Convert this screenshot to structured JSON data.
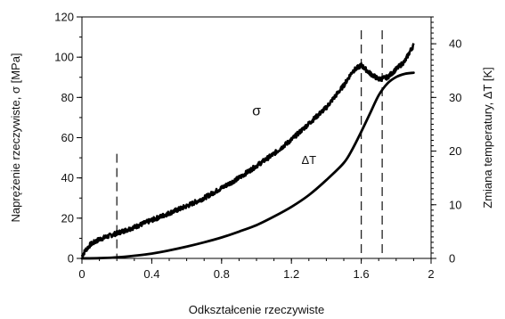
{
  "chart_data": {
    "type": "line",
    "xlabel": "Odkształcenie rzeczywiste",
    "ylabel_left": "Naprężenie rzeczywiste, σ  [MPa]",
    "ylabel_right": "Zmiana temperatury, ΔT  [K]",
    "xlim": [
      0,
      2
    ],
    "ylim_left": [
      0,
      120
    ],
    "ylim_right": [
      0,
      45
    ],
    "x_ticks": [
      0,
      0.4,
      0.8,
      1.2,
      1.6,
      2
    ],
    "x_tick_labels": [
      "0",
      "0.4",
      "0.8",
      "1.2",
      "1.6",
      "2"
    ],
    "y_left_ticks": [
      0,
      20,
      40,
      60,
      80,
      100,
      120
    ],
    "y_left_tick_labels": [
      "0",
      "20",
      "40",
      "60",
      "80",
      "100",
      "120"
    ],
    "y_right_ticks": [
      0,
      10,
      20,
      30,
      40
    ],
    "y_right_tick_labels": [
      "0",
      "10",
      "20",
      "30",
      "40"
    ],
    "grid": false,
    "vertical_markers": [
      0.2,
      1.6,
      1.72
    ],
    "series": [
      {
        "name": "σ",
        "axis": "left",
        "style": "noisy-thick",
        "x": [
          0,
          0.02,
          0.05,
          0.1,
          0.15,
          0.2,
          0.3,
          0.4,
          0.5,
          0.6,
          0.7,
          0.8,
          0.9,
          1.0,
          1.1,
          1.2,
          1.3,
          1.4,
          1.5,
          1.55,
          1.6,
          1.65,
          1.7,
          1.75,
          1.8,
          1.85,
          1.88,
          1.9
        ],
        "values": [
          1,
          4,
          7,
          9.5,
          11,
          12.5,
          15.5,
          19,
          22.5,
          26,
          30,
          35,
          40,
          46,
          52,
          59,
          67,
          75,
          86,
          93,
          96,
          92,
          89,
          90,
          94,
          98,
          103,
          106
        ]
      },
      {
        "name": "ΔT",
        "axis": "right",
        "style": "smooth-bold",
        "x": [
          0,
          0.1,
          0.2,
          0.3,
          0.4,
          0.5,
          0.6,
          0.7,
          0.8,
          0.9,
          1.0,
          1.1,
          1.2,
          1.3,
          1.4,
          1.5,
          1.55,
          1.6,
          1.65,
          1.7,
          1.75,
          1.8,
          1.85,
          1.9
        ],
        "values": [
          0,
          0.05,
          0.2,
          0.5,
          0.9,
          1.5,
          2.2,
          3.0,
          3.9,
          5.0,
          6.2,
          7.8,
          9.6,
          11.8,
          14.6,
          17.8,
          20.4,
          23.6,
          27.0,
          30.4,
          32.6,
          33.8,
          34.4,
          34.6
        ]
      }
    ]
  }
}
